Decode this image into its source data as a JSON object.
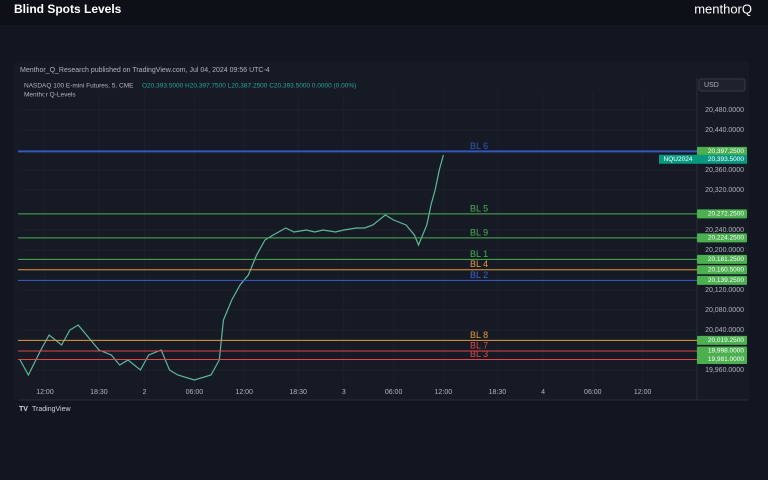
{
  "header": {
    "title": "Blind Spots Levels",
    "logo": "menthorQ"
  },
  "chart_data": {
    "type": "line",
    "published": "Menthor_Q_Research published on TradingView.com, Jul 04, 2024 09:56 UTC-4",
    "symbol_info": "NASDAQ 100 E-mini Futures, 5, CME",
    "ohlc": "O20,393.5000 H20,397.7500 L20,387.2500 C20,393.5000 0.0000 (0.00%)",
    "indicator": "Menthor Q-Levels",
    "currency": "USD",
    "footer": "TradingView",
    "xlim": [
      8.75,
      90.55
    ],
    "xticks": [
      {
        "value": 12,
        "label": "12:00"
      },
      {
        "value": 18.5,
        "label": "18:30"
      },
      {
        "value": 24,
        "label": "2"
      },
      {
        "value": 30,
        "label": "06:00"
      },
      {
        "value": 36,
        "label": "12:00"
      },
      {
        "value": 42.5,
        "label": "18:30"
      },
      {
        "value": 48,
        "label": "3"
      },
      {
        "value": 54,
        "label": "06:00"
      },
      {
        "value": 60,
        "label": "12:00"
      },
      {
        "value": 66.5,
        "label": "18:30"
      },
      {
        "value": 72,
        "label": "4"
      },
      {
        "value": 78,
        "label": "06:00"
      },
      {
        "value": 84,
        "label": "12:00"
      }
    ],
    "ylim": [
      19904,
      20516
    ],
    "yticks": [
      {
        "value": 20480,
        "label": "20,480.0000"
      },
      {
        "value": 20440,
        "label": "20,440.0000"
      },
      {
        "value": 20360,
        "label": "20,360.0000"
      },
      {
        "value": 20320,
        "label": "20,320.0000"
      },
      {
        "value": 20240,
        "label": "20,240.0000"
      },
      {
        "value": 20200,
        "label": "20,200.0000"
      },
      {
        "value": 20120,
        "label": "20,120.0000"
      },
      {
        "value": 20080,
        "label": "20,080.0000"
      },
      {
        "value": 20040,
        "label": "20,040.0000"
      },
      {
        "value": 19960,
        "label": "19,960.0000"
      }
    ],
    "series": [
      {
        "name": "NQU2024",
        "color": "#5fb89a",
        "x": [
          9,
          10,
          11.5,
          12.5,
          14,
          15,
          16,
          17.5,
          18.5,
          20,
          21,
          22,
          23.5,
          24.5,
          26,
          27,
          28,
          30,
          32,
          33,
          33.5,
          34.5,
          35.5,
          36.5,
          37.5,
          38.5,
          39.5,
          41,
          42,
          43.5,
          44.5,
          45.5,
          47,
          48,
          49.5,
          50.5,
          51.5,
          53,
          54,
          55.5,
          56.5,
          57,
          58,
          58.5,
          59,
          59.5,
          60
        ],
        "values": [
          19980,
          19950,
          20000,
          20030,
          20010,
          20040,
          20050,
          20020,
          20000,
          19990,
          19970,
          19980,
          19960,
          19990,
          20000,
          19960,
          19950,
          19940,
          19950,
          19980,
          20060,
          20100,
          20130,
          20150,
          20190,
          20220,
          20230,
          20244,
          20236,
          20240,
          20236,
          20240,
          20236,
          20240,
          20244,
          20244,
          20250,
          20270,
          20260,
          20250,
          20230,
          20210,
          20250,
          20290,
          20320,
          20360,
          20390
        ]
      }
    ],
    "levels": [
      {
        "name": "BL 6",
        "value": 20397.25,
        "value_label": "20,397.2500",
        "color": "#3457b8"
      },
      {
        "name": "BL 5",
        "value": 20272.25,
        "value_label": "20,272.2500",
        "color": "#4caf50"
      },
      {
        "name": "BL 9",
        "value": 20224.25,
        "value_label": "20,224.2500",
        "color": "#4caf50"
      },
      {
        "name": "BL 1",
        "value": 20181.25,
        "value_label": "20,181.2500",
        "color": "#4caf50"
      },
      {
        "name": "BL 4",
        "value": 20160.5,
        "value_label": "20,160.5000",
        "color": "#e59a3a"
      },
      {
        "name": "BL 2",
        "value": 20139.25,
        "value_label": "20,139.2500",
        "color": "#3a62d6"
      },
      {
        "name": "BL 8",
        "value": 20019.25,
        "value_label": "20,019.2500",
        "color": "#e59a3a"
      },
      {
        "name": "BL 7",
        "value": 19998,
        "value_label": "19,998.0000",
        "color": "#e0474c"
      },
      {
        "name": "BL 3",
        "value": 19981,
        "value_label": "19,981.0000",
        "color": "#e0474c"
      }
    ],
    "last_price": {
      "symbol": "NQU2024",
      "value": 20393.5,
      "label": "20,393.5000"
    }
  }
}
